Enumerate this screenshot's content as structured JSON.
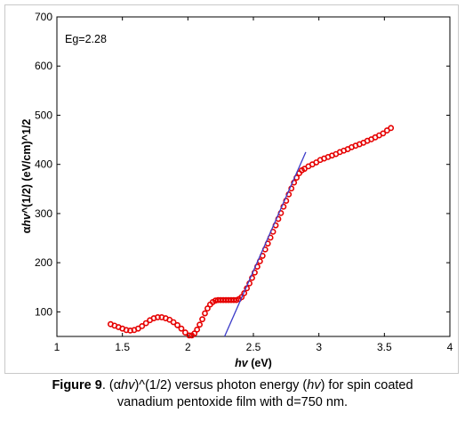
{
  "chart_data": {
    "type": "scatter",
    "xlabel_italic": "hv",
    "xlabel_unit": " (eV)",
    "ylabel_prefix": "α",
    "ylabel_italic": "hv",
    "ylabel_rest": "^(1/2) (eV/cm)^1/2",
    "annotation": "Eg=2.28",
    "xlim": [
      1,
      4
    ],
    "ylim": [
      50,
      700
    ],
    "x_ticks": [
      1,
      1.5,
      2,
      2.5,
      3,
      3.5,
      4
    ],
    "x_tick_labels": [
      "1",
      "1.5",
      "2",
      "2.5",
      "3",
      "3.5",
      "4"
    ],
    "y_ticks": [
      100,
      200,
      300,
      400,
      500,
      600,
      700
    ],
    "y_tick_labels": [
      "100",
      "200",
      "300",
      "400",
      "500",
      "600",
      "700"
    ],
    "grid": false,
    "series": [
      {
        "marker": "circle",
        "color": "#e60000",
        "x": [
          1.41,
          1.44,
          1.47,
          1.5,
          1.53,
          1.56,
          1.59,
          1.62,
          1.65,
          1.68,
          1.71,
          1.74,
          1.77,
          1.8,
          1.83,
          1.86,
          1.89,
          1.92,
          1.95,
          1.98,
          2.01,
          2.03,
          2.05,
          2.07,
          2.09,
          2.11,
          2.13,
          2.15,
          2.17,
          2.19,
          2.21,
          2.23,
          2.25,
          2.27,
          2.29,
          2.31,
          2.33,
          2.35,
          2.37,
          2.39,
          2.41,
          2.43,
          2.45,
          2.47,
          2.49,
          2.51,
          2.53,
          2.55,
          2.57,
          2.59,
          2.61,
          2.63,
          2.65,
          2.67,
          2.69,
          2.71,
          2.73,
          2.75,
          2.77,
          2.79,
          2.81,
          2.83,
          2.85,
          2.87,
          2.89,
          2.92,
          2.95,
          2.98,
          3.01,
          3.04,
          3.07,
          3.1,
          3.13,
          3.16,
          3.19,
          3.22,
          3.25,
          3.28,
          3.31,
          3.34,
          3.37,
          3.4,
          3.43,
          3.46,
          3.49,
          3.52,
          3.55
        ],
        "y": [
          75,
          72,
          69,
          66,
          63,
          62,
          63,
          66,
          71,
          77,
          83,
          87,
          89,
          89,
          87,
          84,
          79,
          73,
          66,
          58,
          52,
          52,
          56,
          64,
          74,
          85,
          97,
          107,
          115,
          120,
          123,
          124,
          124,
          124,
          124,
          124,
          124,
          124,
          124,
          126,
          130,
          138,
          148,
          158,
          169,
          180,
          192,
          203,
          214,
          227,
          239,
          251,
          263,
          276,
          289,
          301,
          314,
          326,
          339,
          351,
          363,
          373,
          382,
          388,
          391,
          396,
          400,
          404,
          409,
          412,
          415,
          418,
          421,
          425,
          428,
          431,
          435,
          438,
          441,
          444,
          448,
          451,
          455,
          459,
          463,
          469,
          474
        ]
      },
      {
        "marker": "none",
        "color": "#3c3cc8",
        "x": [
          2.28,
          2.9
        ],
        "y": [
          50,
          425
        ]
      }
    ]
  },
  "caption": {
    "figure_label": "Figure 9",
    "text_1": ". (α",
    "italic_1": "hv",
    "text_2": ")^(1/2) versus photon energy (",
    "italic_2": "hv",
    "text_3": ") for spin coated",
    "line_2": "vanadium pentoxide film with d=750 nm."
  }
}
